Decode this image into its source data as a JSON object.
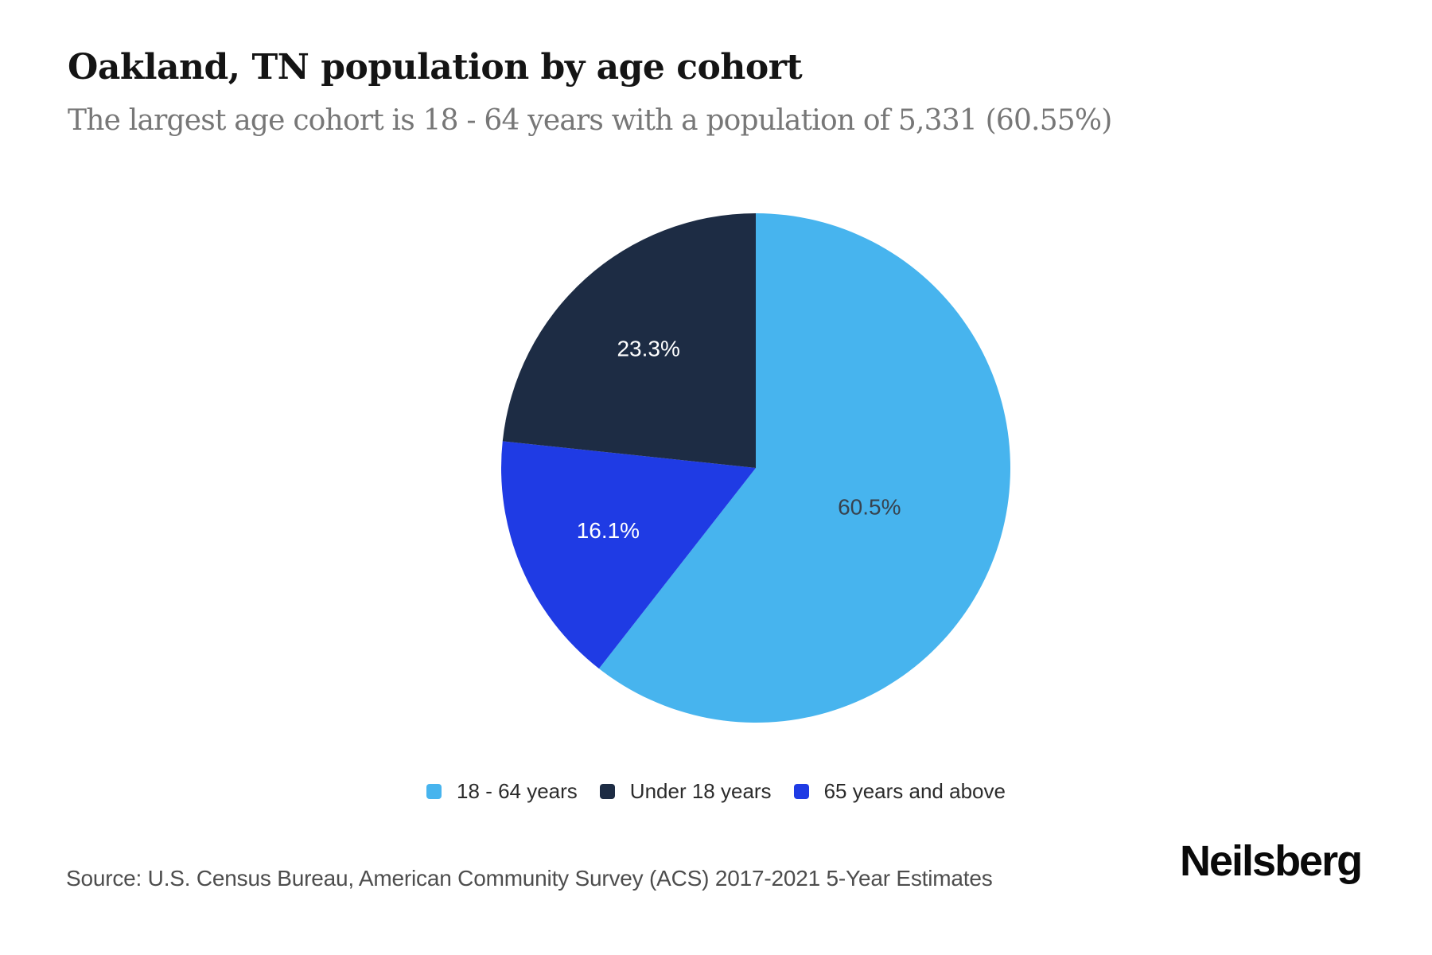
{
  "page": {
    "title": "Oakland, TN population by age cohort",
    "subtitle": "The largest age cohort is 18 - 64 years with a population of 5,331 (60.55%)"
  },
  "chart_data": {
    "type": "pie",
    "title": "Oakland, TN population by age cohort",
    "subtitle": "The largest age cohort is 18 - 64 years with a population of 5,331 (60.55%)",
    "unit": "percent",
    "start_angle_deg": 0,
    "direction": "clockwise",
    "slices": [
      {
        "label": "18 - 64 years",
        "value": 60.5,
        "display": "60.5%",
        "color": "#47b4ee",
        "label_color": "#37424e"
      },
      {
        "label": "65 years and above",
        "value": 16.1,
        "display": "16.1%",
        "color": "#1f3be4",
        "label_color": "#ffffff"
      },
      {
        "label": "Under 18 years",
        "value": 23.3,
        "display": "23.3%",
        "color": "#1d2c44",
        "label_color": "#ffffff"
      }
    ],
    "legend": [
      {
        "label": "18 - 64 years",
        "color": "#47b4ee"
      },
      {
        "label": "Under 18 years",
        "color": "#1d2c44"
      },
      {
        "label": "65 years and above",
        "color": "#1f3be4"
      }
    ],
    "legend_position": "bottom",
    "largest_cohort": {
      "label": "18 - 64 years",
      "population": "5,331",
      "share": "60.55%"
    }
  },
  "footer": {
    "source": "Source: U.S. Census Bureau, American Community Survey (ACS) 2017-2021 5-Year Estimates",
    "brand": "Neilsberg"
  }
}
